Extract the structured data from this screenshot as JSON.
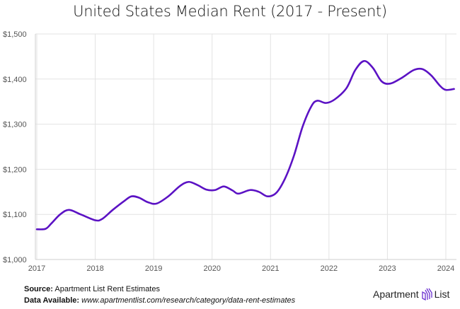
{
  "chart_data": {
    "type": "line",
    "title": "United States Median Rent (2017 - Present)",
    "xlabel": "",
    "ylabel": "",
    "x_ticks": [
      "2017",
      "2018",
      "2019",
      "2020",
      "2021",
      "2022",
      "2023",
      "2024"
    ],
    "y_ticks": [
      "$1,000",
      "$1,100",
      "$1,200",
      "$1,300",
      "$1,400",
      "$1,500"
    ],
    "xlim": [
      2017,
      2024.15
    ],
    "ylim": [
      1000,
      1500
    ],
    "grid": true,
    "line_color": "#5b12c4",
    "series": [
      {
        "x": [
          2017.0,
          2017.15,
          2017.25,
          2017.4,
          2017.55,
          2017.75,
          2018.0,
          2018.12,
          2018.3,
          2018.5,
          2018.62,
          2018.75,
          2018.9,
          2019.05,
          2019.25,
          2019.45,
          2019.6,
          2019.75,
          2019.9,
          2020.05,
          2020.2,
          2020.35,
          2020.45,
          2020.65,
          2020.8,
          2020.95,
          2021.1,
          2021.25,
          2021.4,
          2021.55,
          2021.7,
          2021.8,
          2021.95,
          2022.1,
          2022.3,
          2022.45,
          2022.6,
          2022.75,
          2022.9,
          2023.05,
          2023.25,
          2023.45,
          2023.6,
          2023.75,
          2023.9,
          2024.0,
          2024.14
        ],
        "y": [
          1067,
          1068,
          1080,
          1100,
          1110,
          1100,
          1087,
          1090,
          1110,
          1130,
          1140,
          1137,
          1127,
          1124,
          1140,
          1163,
          1172,
          1165,
          1155,
          1154,
          1162,
          1153,
          1146,
          1154,
          1150,
          1140,
          1148,
          1180,
          1230,
          1295,
          1340,
          1352,
          1347,
          1355,
          1380,
          1420,
          1440,
          1425,
          1395,
          1390,
          1403,
          1420,
          1422,
          1408,
          1385,
          1376,
          1378
        ]
      }
    ]
  },
  "footer": {
    "source_label": "Source:",
    "source_text": "Apartment List Rent Estimates",
    "data_label": "Data Available:",
    "data_url": "www.apartmentlist.com/research/category/data-rent-estimates"
  },
  "logo": {
    "left": "Apartment",
    "right": "List"
  }
}
